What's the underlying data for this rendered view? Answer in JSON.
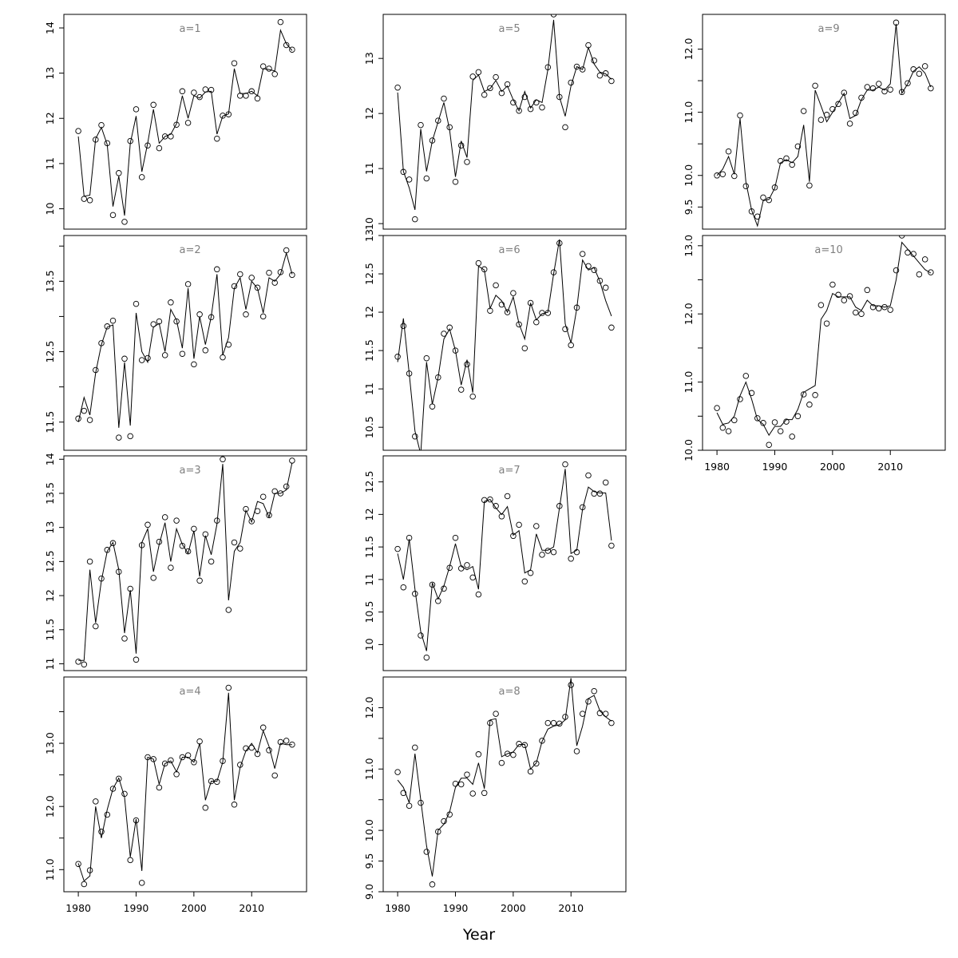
{
  "chart_data": {
    "type": "line",
    "xlabel": "Year",
    "x": [
      1980,
      1981,
      1982,
      1983,
      1984,
      1985,
      1986,
      1987,
      1988,
      1989,
      1990,
      1991,
      1992,
      1993,
      1994,
      1995,
      1996,
      1997,
      1998,
      1999,
      2000,
      2001,
      2002,
      2003,
      2004,
      2005,
      2006,
      2007,
      2008,
      2009,
      2010,
      2011,
      2012,
      2013,
      2014,
      2015,
      2016,
      2017
    ],
    "xticks": [
      1980,
      1990,
      2000,
      2010
    ],
    "xlim": [
      1977.5,
      2019.5
    ],
    "series_style": {
      "points": "observed (open circles)",
      "line": "fitted (solid line)"
    },
    "panels": [
      {
        "label": "a=1",
        "ylim": [
          9.55,
          14.3
        ],
        "yticks": [
          10,
          11,
          12,
          13,
          14
        ],
        "points": [
          11.72,
          10.22,
          10.19,
          11.53,
          11.85,
          11.45,
          9.86,
          10.79,
          9.71,
          11.5,
          12.2,
          10.7,
          11.4,
          12.3,
          11.34,
          11.6,
          11.6,
          11.86,
          12.6,
          11.9,
          12.57,
          12.47,
          12.64,
          12.63,
          11.55,
          12.06,
          12.09,
          13.22,
          12.5,
          12.5,
          12.6,
          12.44,
          13.15,
          13.1,
          12.98,
          14.13,
          13.62,
          13.52
        ],
        "fit": [
          11.6,
          10.28,
          10.3,
          11.55,
          11.8,
          11.42,
          10.05,
          10.72,
          9.85,
          11.45,
          12.05,
          10.82,
          11.45,
          12.2,
          11.45,
          11.6,
          11.65,
          11.88,
          12.5,
          12.0,
          12.5,
          12.45,
          12.58,
          12.6,
          11.65,
          12.05,
          12.1,
          13.1,
          12.55,
          12.55,
          12.6,
          12.5,
          13.1,
          13.08,
          13.05,
          13.95,
          13.65,
          13.5
        ]
      },
      {
        "label": "a=5",
        "ylim": [
          9.9,
          13.8
        ],
        "yticks": [
          10,
          11,
          12,
          13
        ],
        "points": [
          12.47,
          10.94,
          10.8,
          10.08,
          11.79,
          10.82,
          11.51,
          11.87,
          12.27,
          11.75,
          10.76,
          11.42,
          11.12,
          12.67,
          12.75,
          12.34,
          12.46,
          12.66,
          12.37,
          12.53,
          12.2,
          12.05,
          12.3,
          12.08,
          12.2,
          12.11,
          12.84,
          13.8,
          12.3,
          11.75,
          12.56,
          12.85,
          12.8,
          13.24,
          12.96,
          12.69,
          12.73,
          12.59
        ],
        "fit": [
          12.38,
          10.95,
          10.65,
          10.25,
          11.72,
          10.95,
          11.5,
          11.85,
          12.2,
          11.7,
          10.85,
          11.5,
          11.2,
          12.6,
          12.7,
          12.4,
          12.45,
          12.6,
          12.4,
          12.5,
          12.25,
          12.05,
          12.4,
          12.1,
          12.25,
          12.2,
          12.8,
          13.7,
          12.3,
          11.95,
          12.5,
          12.85,
          12.8,
          13.2,
          12.9,
          12.75,
          12.72,
          12.62
        ]
      },
      {
        "label": "a=9",
        "ylim": [
          9.15,
          12.55
        ],
        "yticks": [
          9.5,
          10.0,
          11.0,
          12.0
        ],
        "ytick_labels": [
          "9.5",
          "10.0",
          "11.0",
          "12.0"
        ],
        "yminor": [
          10.5,
          11.5
        ],
        "points": [
          10.0,
          10.02,
          10.38,
          9.99,
          10.95,
          9.83,
          9.43,
          9.35,
          9.65,
          9.61,
          9.81,
          10.23,
          10.27,
          10.17,
          10.46,
          11.02,
          9.84,
          11.42,
          10.88,
          10.96,
          11.05,
          11.13,
          11.31,
          10.82,
          10.99,
          11.23,
          11.4,
          11.38,
          11.45,
          11.33,
          11.36,
          12.42,
          11.32,
          11.46,
          11.68,
          11.61,
          11.73,
          11.38
        ],
        "fit": [
          10.0,
          10.1,
          10.3,
          10.02,
          10.9,
          9.9,
          9.45,
          9.2,
          9.6,
          9.62,
          9.8,
          10.2,
          10.25,
          10.2,
          10.3,
          10.8,
          9.9,
          11.35,
          11.1,
          10.85,
          11.0,
          11.15,
          11.3,
          10.9,
          10.95,
          11.2,
          11.35,
          11.35,
          11.4,
          11.35,
          11.45,
          12.4,
          11.3,
          11.45,
          11.65,
          11.72,
          11.62,
          11.4
        ]
      },
      {
        "label": "a=2",
        "ylim": [
          11.1,
          14.15
        ],
        "yticks": [
          11.5,
          12.5,
          13.5
        ],
        "yminor": [
          12.0,
          13.0,
          14.0
        ],
        "points": [
          11.55,
          11.66,
          11.53,
          12.24,
          12.62,
          12.86,
          12.94,
          11.28,
          12.4,
          11.3,
          13.18,
          12.38,
          12.41,
          12.89,
          12.93,
          12.45,
          13.2,
          12.93,
          12.47,
          13.46,
          12.32,
          13.03,
          12.52,
          12.99,
          13.67,
          12.42,
          12.6,
          13.43,
          13.6,
          13.03,
          13.55,
          13.41,
          13.0,
          13.62,
          13.48,
          13.63,
          13.94,
          13.59
        ],
        "fit": [
          11.5,
          11.85,
          11.6,
          12.2,
          12.6,
          12.85,
          12.88,
          11.42,
          12.35,
          11.45,
          13.05,
          12.5,
          12.35,
          12.85,
          12.9,
          12.5,
          13.1,
          12.95,
          12.55,
          13.4,
          12.4,
          13.0,
          12.6,
          13.0,
          13.6,
          12.45,
          12.7,
          13.4,
          13.55,
          13.1,
          13.5,
          13.4,
          13.05,
          13.55,
          13.5,
          13.6,
          13.9,
          13.6
        ]
      },
      {
        "label": "a=6",
        "ylim": [
          10.2,
          13.0
        ],
        "yticks": [
          10.5,
          11.0,
          11.5,
          12.0,
          12.5,
          13.0
        ],
        "points": [
          11.42,
          11.82,
          11.2,
          10.38,
          10.14,
          11.4,
          10.77,
          11.15,
          11.72,
          11.8,
          11.5,
          10.99,
          11.32,
          10.9,
          12.64,
          12.56,
          12.02,
          12.35,
          12.1,
          12.0,
          12.25,
          11.84,
          11.53,
          12.12,
          11.87,
          11.99,
          11.99,
          12.52,
          12.9,
          11.78,
          11.57,
          12.06,
          12.76,
          12.6,
          12.55,
          12.41,
          12.32,
          11.8
        ],
        "fit": [
          11.35,
          11.92,
          11.2,
          10.45,
          10.15,
          11.35,
          10.8,
          11.15,
          11.65,
          11.78,
          11.5,
          11.05,
          11.38,
          10.95,
          12.6,
          12.55,
          12.05,
          12.22,
          12.15,
          12.0,
          12.2,
          11.85,
          11.65,
          12.12,
          11.9,
          11.98,
          12.0,
          12.5,
          12.95,
          11.85,
          11.6,
          12.05,
          12.68,
          12.55,
          12.58,
          12.4,
          12.15,
          11.95
        ]
      },
      {
        "label": "a=10",
        "ylim": [
          10.0,
          13.15
        ],
        "yticks": [
          10.0,
          11.0,
          12.0,
          13.0
        ],
        "ytick_labels": [
          "10.0",
          "11.0",
          "12.0",
          "13.0"
        ],
        "yminor": [
          10.5,
          11.5,
          12.5
        ],
        "points": [
          10.62,
          10.33,
          10.28,
          10.44,
          10.75,
          11.09,
          10.84,
          10.47,
          10.4,
          10.08,
          10.41,
          10.28,
          10.42,
          10.2,
          10.5,
          10.82,
          10.67,
          10.81,
          12.13,
          11.86,
          12.43,
          12.28,
          12.2,
          12.26,
          12.02,
          12.0,
          12.35,
          12.1,
          12.08,
          12.1,
          12.06,
          12.64,
          13.15,
          12.9,
          12.88,
          12.58,
          12.8,
          12.61
        ],
        "fit": [
          10.55,
          10.38,
          10.4,
          10.5,
          10.8,
          11.0,
          10.75,
          10.45,
          10.38,
          10.22,
          10.35,
          10.35,
          10.45,
          10.45,
          10.6,
          10.85,
          10.9,
          10.95,
          11.92,
          12.05,
          12.3,
          12.25,
          12.25,
          12.25,
          12.1,
          12.05,
          12.2,
          12.12,
          12.12,
          12.1,
          12.12,
          12.5,
          13.05,
          12.95,
          12.85,
          12.75,
          12.65,
          12.6
        ]
      },
      {
        "label": "a=3",
        "ylim": [
          10.9,
          14.05
        ],
        "yticks": [
          11.0,
          11.5,
          12.0,
          12.5,
          13.0,
          13.5,
          14.0
        ],
        "points": [
          11.03,
          10.99,
          12.5,
          11.55,
          12.25,
          12.67,
          12.77,
          12.35,
          11.37,
          12.1,
          11.06,
          12.74,
          13.04,
          12.26,
          12.79,
          13.15,
          12.41,
          13.1,
          12.73,
          12.65,
          12.98,
          12.22,
          12.9,
          12.5,
          13.1,
          14.0,
          11.79,
          12.78,
          12.69,
          13.27,
          13.09,
          13.24,
          13.45,
          13.18,
          13.53,
          13.5,
          13.6,
          13.98
        ],
        "fit": [
          11.05,
          11.05,
          12.38,
          11.6,
          12.22,
          12.65,
          12.78,
          12.38,
          11.45,
          12.08,
          11.15,
          12.78,
          12.98,
          12.35,
          12.75,
          13.07,
          12.5,
          12.98,
          12.75,
          12.62,
          12.95,
          12.28,
          12.88,
          12.6,
          13.05,
          13.93,
          11.93,
          12.65,
          12.78,
          13.25,
          13.08,
          13.38,
          13.35,
          13.15,
          13.5,
          13.5,
          13.55,
          13.95
        ]
      },
      {
        "label": "a=7",
        "ylim": [
          9.6,
          12.9
        ],
        "yticks": [
          10.0,
          10.5,
          11.0,
          11.5,
          12.0,
          12.5
        ],
        "points": [
          11.47,
          10.88,
          11.64,
          10.78,
          10.14,
          9.8,
          10.92,
          10.67,
          10.86,
          11.18,
          11.64,
          11.17,
          11.22,
          11.03,
          10.77,
          12.22,
          12.23,
          12.13,
          11.97,
          12.28,
          11.67,
          11.84,
          10.97,
          11.1,
          11.82,
          11.38,
          11.44,
          11.42,
          12.13,
          12.77,
          11.32,
          11.42,
          12.11,
          12.6,
          12.32,
          12.32,
          12.49,
          11.52
        ],
        "fit": [
          11.4,
          11.0,
          11.62,
          10.85,
          10.2,
          9.9,
          10.95,
          10.7,
          10.9,
          11.2,
          11.55,
          11.2,
          11.15,
          11.2,
          10.85,
          12.2,
          12.23,
          12.1,
          12.0,
          12.12,
          11.68,
          11.75,
          11.1,
          11.15,
          11.7,
          11.45,
          11.45,
          11.5,
          12.1,
          12.7,
          11.4,
          11.45,
          12.08,
          12.42,
          12.35,
          12.33,
          12.33,
          11.6
        ]
      },
      {
        "label": "a=4",
        "ylim": [
          10.65,
          14.05
        ],
        "yticks": [
          11.0,
          12.0,
          13.0
        ],
        "ytick_labels": [
          "11.0",
          "12.0",
          "13.0"
        ],
        "yminor": [
          11.5,
          12.5,
          13.5
        ],
        "points": [
          11.09,
          10.77,
          10.99,
          12.08,
          11.6,
          11.87,
          12.28,
          12.44,
          12.2,
          11.15,
          11.78,
          10.79,
          12.78,
          12.75,
          12.3,
          12.68,
          12.73,
          12.51,
          12.78,
          12.81,
          12.7,
          13.03,
          11.98,
          12.4,
          12.39,
          12.72,
          13.88,
          12.03,
          12.66,
          12.92,
          12.93,
          12.83,
          13.25,
          12.89,
          12.49,
          13.02,
          13.04,
          12.98
        ],
        "fit": [
          11.1,
          10.82,
          10.9,
          12.0,
          11.5,
          11.95,
          12.28,
          12.45,
          12.15,
          11.2,
          11.8,
          10.98,
          12.78,
          12.75,
          12.35,
          12.68,
          12.72,
          12.55,
          12.78,
          12.78,
          12.7,
          13.0,
          12.1,
          12.4,
          12.4,
          12.7,
          13.8,
          12.1,
          12.62,
          12.88,
          13.0,
          12.85,
          13.2,
          12.95,
          12.6,
          13.0,
          12.98,
          12.98
        ]
      },
      {
        "label": "a=8",
        "ylim": [
          9.0,
          12.5
        ],
        "yticks": [
          9.0,
          9.5,
          10.0,
          11.0,
          12.0
        ],
        "ytick_labels": [
          "9.0",
          "9.5",
          "10.0",
          "11.0",
          "12.0"
        ],
        "yminor": [
          10.5,
          11.5
        ],
        "points": [
          10.95,
          10.61,
          10.4,
          11.35,
          10.45,
          9.65,
          9.12,
          9.98,
          10.15,
          10.26,
          10.76,
          10.75,
          10.91,
          10.6,
          11.24,
          10.61,
          11.75,
          11.9,
          11.1,
          11.25,
          11.23,
          11.41,
          11.39,
          10.96,
          11.09,
          11.46,
          11.75,
          11.75,
          11.74,
          11.85,
          12.37,
          11.29,
          11.9,
          12.1,
          12.27,
          11.91,
          11.9,
          11.75
        ],
        "fit": [
          10.82,
          10.7,
          10.45,
          11.25,
          10.5,
          9.75,
          9.25,
          10.0,
          10.1,
          10.3,
          10.7,
          10.85,
          10.85,
          10.75,
          11.1,
          10.68,
          11.8,
          11.82,
          11.2,
          11.25,
          11.28,
          11.4,
          11.4,
          11.0,
          11.1,
          11.45,
          11.65,
          11.7,
          11.72,
          11.8,
          12.48,
          11.38,
          11.7,
          12.15,
          12.2,
          11.95,
          11.85,
          11.78
        ]
      }
    ]
  }
}
